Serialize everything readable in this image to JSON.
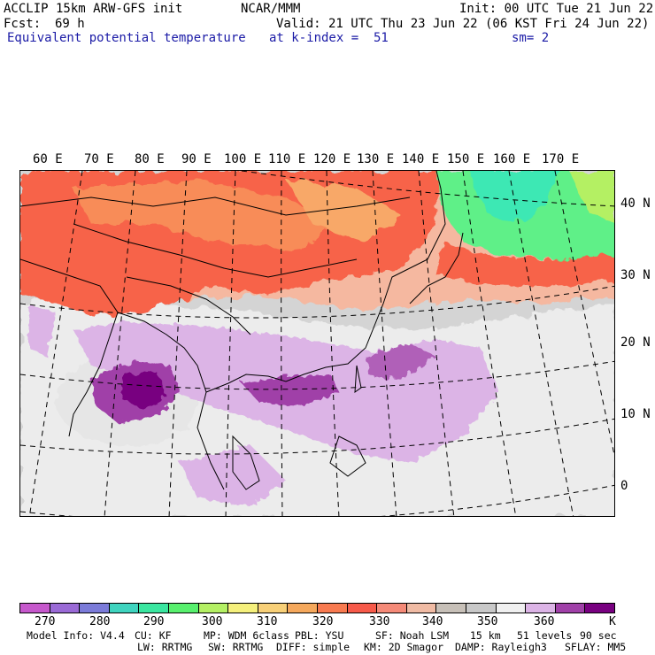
{
  "header": {
    "model_line": "ACCLIP 15km ARW-GFS init",
    "org": "NCAR/MMM",
    "init": "Init: 00 UTC Tue 21 Jun 22",
    "fcst_label": "Fcst:",
    "fcst_value": "69 h",
    "valid": "Valid: 21 UTC Thu 23 Jun 22 (06 KST Fri 24 Jun 22)",
    "field": "Equivalent potential temperature",
    "level": "at k-index =  51",
    "smooth": "sm= 2"
  },
  "map": {
    "longitude_labels": [
      "60 E",
      "70 E",
      "80 E",
      "90 E",
      "100 E",
      "110 E",
      "120 E",
      "130 E",
      "140 E",
      "150 E",
      "160 E",
      "170 E"
    ],
    "latitude_labels": [
      "40 N",
      "30 N",
      "20 N",
      "10 N",
      "0"
    ]
  },
  "colorbar": {
    "colors": [
      "#c658cc",
      "#9a6ad6",
      "#7b7bd9",
      "#3fd4bf",
      "#3ae6a0",
      "#58f06e",
      "#b4f064",
      "#f5f07c",
      "#f8d078",
      "#f5a85c",
      "#f87a50",
      "#f75a4a",
      "#f58a78",
      "#f0bba4",
      "#c7c0b8",
      "#c8c8c8",
      "#f0f0f0",
      "#dcb4e6",
      "#a040a8",
      "#780080"
    ],
    "labels": [
      "270",
      "280",
      "290",
      "300",
      "310",
      "320",
      "330",
      "340",
      "350",
      "360"
    ],
    "unit": "K"
  },
  "footer": {
    "line1": [
      "Model Info: V4.4",
      "CU: KF",
      "MP: WDM 6class",
      "PBL: YSU",
      "SF: Noah LSM",
      "15 km",
      "51 levels",
      "90 sec"
    ],
    "line2": [
      "LW: RRTMG",
      "SW: RRTMG",
      "DIFF: simple",
      "KM: 2D Smagor",
      "DAMP: Rayleigh3",
      "SFLAY: MM5"
    ]
  }
}
